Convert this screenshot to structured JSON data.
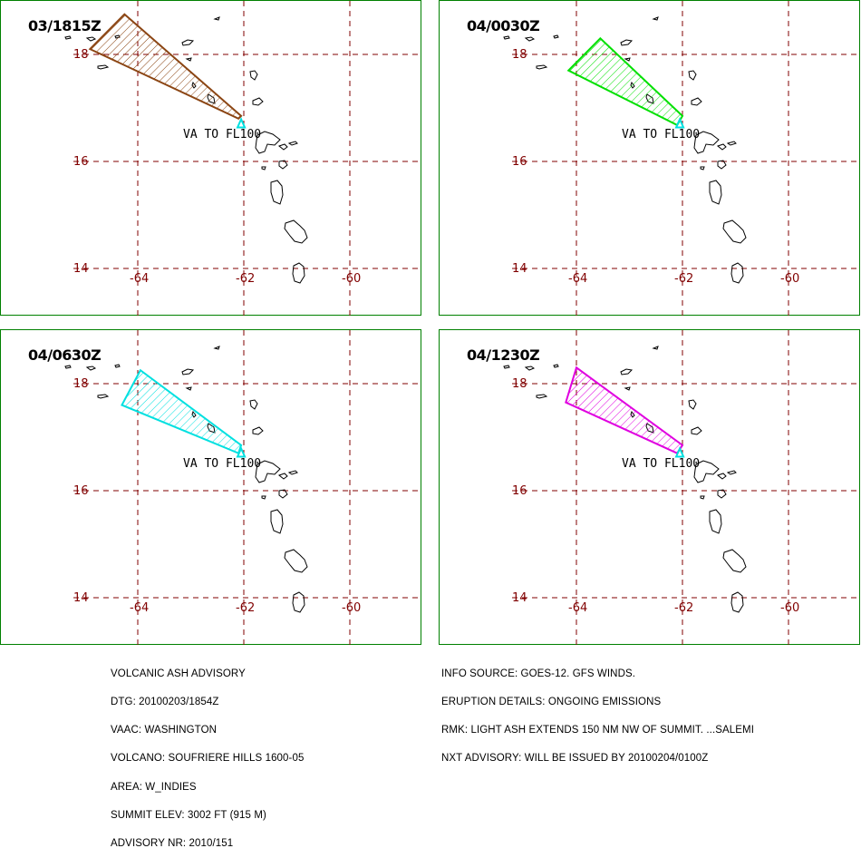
{
  "panels": [
    {
      "time": "03/1815Z",
      "color": "#8B4513",
      "vertices": [
        [
          -64.25,
          18.75
        ],
        [
          -64.9,
          18.1
        ],
        [
          -62.1,
          16.8
        ],
        [
          -62.05,
          16.85
        ]
      ]
    },
    {
      "time": "04/0030Z",
      "color": "#00E000",
      "vertices": [
        [
          -63.55,
          18.3
        ],
        [
          -64.15,
          17.7
        ],
        [
          -62.1,
          16.68
        ],
        [
          -62.0,
          16.85
        ]
      ]
    },
    {
      "time": "04/0630Z",
      "color": "#00E0E0",
      "vertices": [
        [
          -63.95,
          18.25
        ],
        [
          -64.3,
          17.6
        ],
        [
          -62.1,
          16.7
        ],
        [
          -62.05,
          16.85
        ]
      ]
    },
    {
      "time": "04/1230Z",
      "color": "#E000E0",
      "vertices": [
        [
          -64.0,
          18.3
        ],
        [
          -64.2,
          17.65
        ],
        [
          -62.1,
          16.7
        ],
        [
          -62.0,
          16.85
        ]
      ]
    }
  ],
  "map": {
    "lon_labels": [
      "-64",
      "-62",
      "-60"
    ],
    "lat_labels": [
      "18",
      "16",
      "14"
    ],
    "grid_color": "#800000",
    "coast_color": "#000000",
    "volcano_marker_color": "#00E0E0",
    "va_label": "VA  TO  FL100"
  },
  "advisory": {
    "left": [
      "VOLCANIC ASH ADVISORY",
      "DTG: 20100203/1854Z",
      "VAAC: WASHINGTON",
      "VOLCANO: SOUFRIERE HILLS 1600-05",
      "AREA: W_INDIES",
      "SUMMIT ELEV: 3002 FT (915 M)",
      "ADVISORY NR: 2010/151"
    ],
    "right": [
      "INFO SOURCE: GOES-12. GFS WINDS.",
      "ERUPTION DETAILS: ONGOING EMISSIONS",
      "RMK: LIGHT ASH EXTENDS 150 NM NW OF SUMMIT. ...SALEMI",
      "NXT ADVISORY: WILL BE ISSUED BY 20100204/0100Z"
    ]
  }
}
